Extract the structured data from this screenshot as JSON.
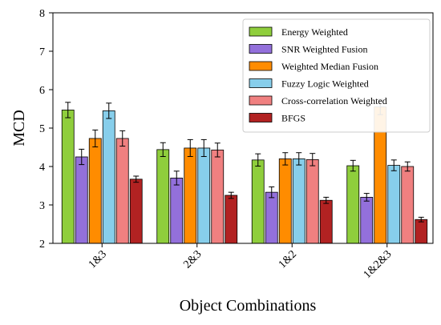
{
  "chart_data": {
    "type": "bar",
    "title": "",
    "xlabel": "Object Combinations",
    "ylabel": "MCD",
    "ylim": [
      2,
      8
    ],
    "yticks": [
      "2",
      "3",
      "4",
      "5",
      "6",
      "7",
      "8"
    ],
    "categories": [
      "1&3",
      "2&3",
      "1&2",
      "1&2&3"
    ],
    "legend_position": "top-right",
    "grid": false,
    "series": [
      {
        "name": "Energy Weighted",
        "color": "#8fce3c",
        "values": [
          5.47,
          4.44,
          4.17,
          4.02
        ],
        "errors": [
          0.2,
          0.18,
          0.16,
          0.14
        ]
      },
      {
        "name": "SNR Weighted Fusion",
        "color": "#9370db",
        "values": [
          4.25,
          3.7,
          3.33,
          3.2
        ],
        "errors": [
          0.2,
          0.18,
          0.14,
          0.1
        ]
      },
      {
        "name": "Weighted Median Fusion",
        "color": "#ff8c00",
        "values": [
          4.73,
          4.48,
          4.2,
          5.55
        ],
        "errors": [
          0.22,
          0.22,
          0.16,
          0.2
        ]
      },
      {
        "name": "Fuzzy Logic Weighted",
        "color": "#87ceeb",
        "values": [
          5.45,
          4.48,
          4.2,
          4.03
        ],
        "errors": [
          0.2,
          0.22,
          0.16,
          0.14
        ]
      },
      {
        "name": "Cross-correlation Weighted",
        "color": "#f08080",
        "values": [
          4.73,
          4.43,
          4.18,
          4.0
        ],
        "errors": [
          0.2,
          0.18,
          0.16,
          0.12
        ]
      },
      {
        "name": "BFGS",
        "color": "#b22222",
        "values": [
          3.67,
          3.25,
          3.12,
          2.62
        ],
        "errors": [
          0.08,
          0.08,
          0.08,
          0.06
        ]
      }
    ]
  }
}
